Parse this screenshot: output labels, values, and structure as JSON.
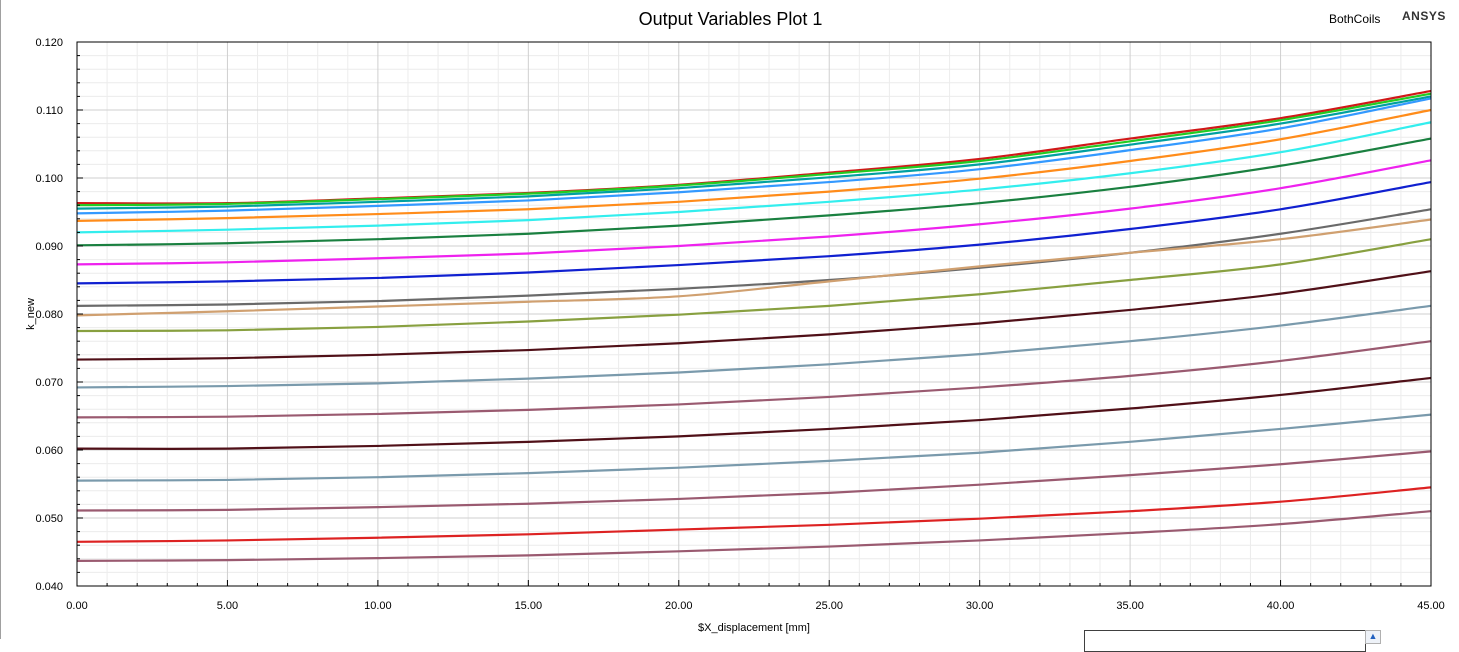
{
  "window": {
    "design_name": "BothCoils",
    "brand": "ANSYS"
  },
  "chart_data": {
    "type": "line",
    "title": "Output Variables Plot 1",
    "xlabel": "$X_displacement [mm]",
    "ylabel": "k_new",
    "xlim": [
      0,
      45
    ],
    "ylim": [
      0.04,
      0.12
    ],
    "xticks": [
      "0.00",
      "5.00",
      "10.00",
      "15.00",
      "20.00",
      "25.00",
      "30.00",
      "35.00",
      "40.00",
      "45.00"
    ],
    "yticks": [
      "0.040",
      "0.050",
      "0.060",
      "0.070",
      "0.080",
      "0.090",
      "0.100",
      "0.110",
      "0.120"
    ],
    "grid": true,
    "x": [
      0,
      5,
      10,
      15,
      20,
      25,
      30,
      35,
      40,
      45
    ],
    "series": [
      {
        "color": "#d01818",
        "values": [
          0.0963,
          0.0963,
          0.097,
          0.0978,
          0.099,
          0.1008,
          0.1028,
          0.1058,
          0.1088,
          0.1128
        ]
      },
      {
        "color": "#22cc22",
        "values": [
          0.096,
          0.0962,
          0.0969,
          0.0977,
          0.0989,
          0.1006,
          0.1025,
          0.1054,
          0.1085,
          0.1124
        ]
      },
      {
        "color": "#00a0a0",
        "values": [
          0.0955,
          0.0958,
          0.0965,
          0.0973,
          0.0985,
          0.1001,
          0.102,
          0.1049,
          0.108,
          0.112
        ]
      },
      {
        "color": "#3399ff",
        "values": [
          0.0948,
          0.0952,
          0.0959,
          0.0967,
          0.0979,
          0.0994,
          0.1013,
          0.1041,
          0.1073,
          0.1117
        ]
      },
      {
        "color": "#ff8c1a",
        "values": [
          0.0937,
          0.0941,
          0.0947,
          0.0954,
          0.0965,
          0.098,
          0.0999,
          0.1025,
          0.1057,
          0.11
        ]
      },
      {
        "color": "#33eeee",
        "values": [
          0.092,
          0.0924,
          0.093,
          0.0938,
          0.095,
          0.0965,
          0.0983,
          0.1007,
          0.1038,
          0.1082
        ]
      },
      {
        "color": "#1a8040",
        "values": [
          0.0901,
          0.0904,
          0.091,
          0.0918,
          0.093,
          0.0945,
          0.0963,
          0.0987,
          0.1018,
          0.1058
        ]
      },
      {
        "color": "#ee22ee",
        "values": [
          0.0873,
          0.0876,
          0.0882,
          0.0889,
          0.09,
          0.0914,
          0.0932,
          0.0955,
          0.0985,
          0.1026
        ]
      },
      {
        "color": "#1020d0",
        "values": [
          0.0845,
          0.0848,
          0.0853,
          0.0861,
          0.0872,
          0.0885,
          0.0902,
          0.0925,
          0.0954,
          0.0994
        ]
      },
      {
        "color": "#6a6a6a",
        "values": [
          0.0812,
          0.0814,
          0.0819,
          0.0827,
          0.0837,
          0.085,
          0.0868,
          0.089,
          0.0918,
          0.0954
        ]
      },
      {
        "color": "#d0a070",
        "values": [
          0.0798,
          0.0804,
          0.0811,
          0.0818,
          0.0826,
          0.0848,
          0.087,
          0.089,
          0.091,
          0.0939
        ]
      },
      {
        "color": "#88a040",
        "values": [
          0.0775,
          0.0776,
          0.0781,
          0.0789,
          0.0799,
          0.0812,
          0.0829,
          0.085,
          0.0873,
          0.091
        ]
      },
      {
        "color": "#501018",
        "values": [
          0.0733,
          0.0735,
          0.074,
          0.0747,
          0.0757,
          0.077,
          0.0786,
          0.0806,
          0.083,
          0.0863
        ]
      },
      {
        "color": "#7a9aac",
        "values": [
          0.0692,
          0.0694,
          0.0698,
          0.0705,
          0.0714,
          0.0726,
          0.0741,
          0.076,
          0.0783,
          0.0812
        ]
      },
      {
        "color": "#9a5a70",
        "values": [
          0.0648,
          0.0649,
          0.0653,
          0.0659,
          0.0667,
          0.0678,
          0.0692,
          0.0709,
          0.0731,
          0.076
        ]
      },
      {
        "color": "#501018",
        "values": [
          0.0602,
          0.0602,
          0.0606,
          0.0612,
          0.062,
          0.0631,
          0.0644,
          0.0661,
          0.0681,
          0.0706
        ]
      },
      {
        "color": "#7a9aac",
        "values": [
          0.0555,
          0.0556,
          0.056,
          0.0566,
          0.0574,
          0.0584,
          0.0596,
          0.0612,
          0.0631,
          0.0652
        ]
      },
      {
        "color": "#9a5a70",
        "values": [
          0.0511,
          0.0512,
          0.0516,
          0.0521,
          0.0528,
          0.0537,
          0.0549,
          0.0563,
          0.0579,
          0.0598
        ]
      },
      {
        "color": "#dd2222",
        "values": [
          0.0465,
          0.0467,
          0.0471,
          0.0476,
          0.0483,
          0.049,
          0.0499,
          0.051,
          0.0524,
          0.0545
        ]
      },
      {
        "color": "#9a5a70",
        "values": [
          0.0437,
          0.0438,
          0.0441,
          0.0445,
          0.0451,
          0.0458,
          0.0467,
          0.0478,
          0.0491,
          0.051
        ]
      }
    ]
  }
}
